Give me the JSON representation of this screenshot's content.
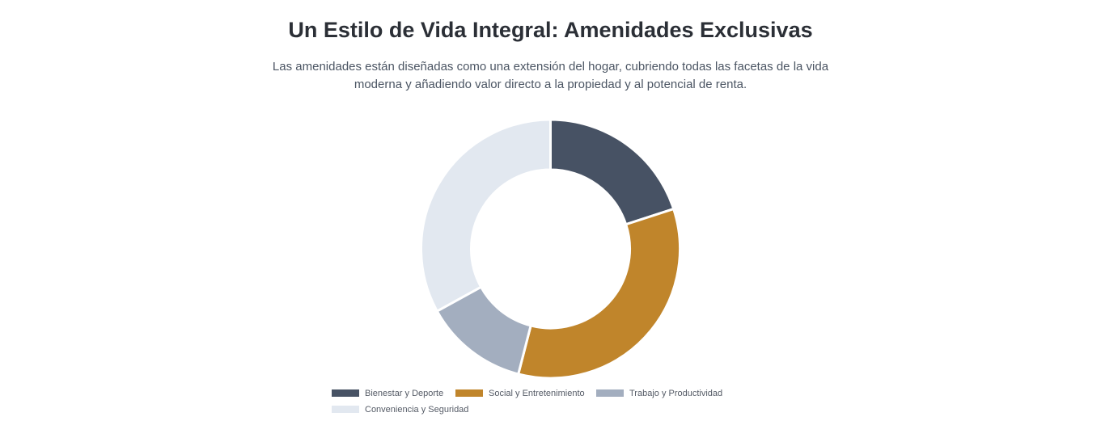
{
  "header": {
    "title": "Un Estilo de Vida Integral: Amenidades Exclusivas",
    "subtitle": "Las amenidades están diseñadas como una extensión del hogar, cubriendo todas las facetas de la vida moderna y añadiendo valor directo a la propiedad y al potencial de renta."
  },
  "chart_data": {
    "type": "pie",
    "variant": "doughnut",
    "categories": [
      "Bienestar y Deporte",
      "Social y Entretenimiento",
      "Trabajo y Productividad",
      "Conveniencia y Seguridad"
    ],
    "values": [
      20,
      34,
      13,
      33
    ],
    "colors": [
      "#475264",
      "#c0852b",
      "#a3aebf",
      "#e2e8f0"
    ],
    "legend_position": "bottom",
    "grid": false
  }
}
